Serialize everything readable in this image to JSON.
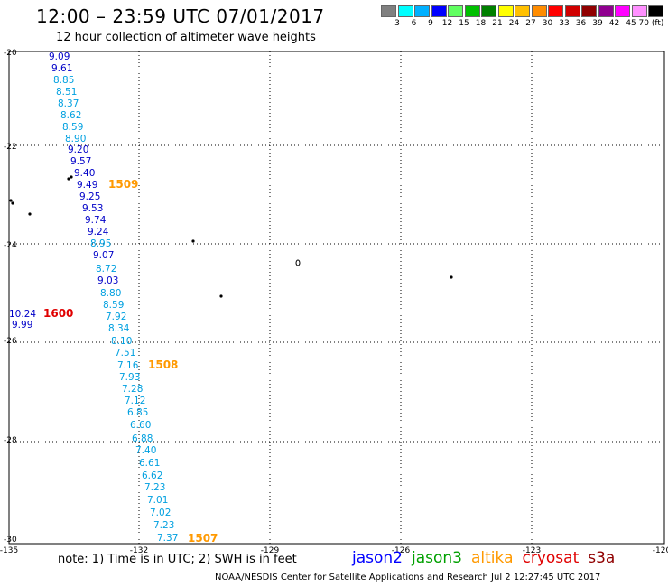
{
  "header": {
    "title": "12:00 – 23:59 UTC 07/01/2017",
    "subtitle": "12 hour collection of altimeter wave heights"
  },
  "legend": {
    "colors": [
      "#808080",
      "#00ffff",
      "#00b0ff",
      "#0000ff",
      "#60ff60",
      "#00c000",
      "#008000",
      "#ffff00",
      "#ffc000",
      "#ff8c00",
      "#ff0000",
      "#d00000",
      "#900000",
      "#900090",
      "#ff00ff",
      "#ff90ff",
      "#000000"
    ],
    "labels": [
      "3",
      "6",
      "9",
      "12",
      "15",
      "18",
      "21",
      "24",
      "27",
      "30",
      "33",
      "36",
      "39",
      "42",
      "45",
      "70 (ft)"
    ]
  },
  "axes": {
    "lon_labels": [
      "-135",
      "-132",
      "-129",
      "-126",
      "-123",
      "-120"
    ],
    "lat_labels": [
      "-20",
      "-22",
      "-24",
      "-26",
      "-28",
      "-30"
    ]
  },
  "satellites": {
    "jason2": {
      "label": "jason2",
      "color": "#0000ff"
    },
    "jason3": {
      "label": "jason3",
      "color": "#00a000"
    },
    "altika": {
      "label": "altika",
      "color": "#ff9900"
    },
    "cryosat": {
      "label": "cryosat",
      "color": "#e00000"
    },
    "s3a": {
      "label": "s3a",
      "color": "#900000"
    }
  },
  "time_labels": [
    {
      "text": "1509",
      "color": "#ff9900"
    },
    {
      "text": "1600",
      "color": "#e00000"
    },
    {
      "text": "1508",
      "color": "#ff9900"
    },
    {
      "text": "1507",
      "color": "#ff9900"
    }
  ],
  "wave_heights": [
    {
      "v": "9.09",
      "c": "#0000c8"
    },
    {
      "v": "9.61",
      "c": "#0000c8"
    },
    {
      "v": "8.85",
      "c": "#00a0e0"
    },
    {
      "v": "8.51",
      "c": "#00a0e0"
    },
    {
      "v": "8.37",
      "c": "#00a0e0"
    },
    {
      "v": "8.62",
      "c": "#00a0e0"
    },
    {
      "v": "8.59",
      "c": "#00a0e0"
    },
    {
      "v": "8.90",
      "c": "#00a0e0"
    },
    {
      "v": "9.20",
      "c": "#0000c8"
    },
    {
      "v": "9.57",
      "c": "#0000c8"
    },
    {
      "v": "9.40",
      "c": "#0000c8"
    },
    {
      "v": "9.49",
      "c": "#0000c8"
    },
    {
      "v": "9.25",
      "c": "#0000c8"
    },
    {
      "v": "9.53",
      "c": "#0000c8"
    },
    {
      "v": "9.74",
      "c": "#0000c8"
    },
    {
      "v": "9.24",
      "c": "#0000c8"
    },
    {
      "v": "8.95",
      "c": "#00a0e0"
    },
    {
      "v": "9.07",
      "c": "#0000c8"
    },
    {
      "v": "8.72",
      "c": "#00a0e0"
    },
    {
      "v": "9.03",
      "c": "#0000c8"
    },
    {
      "v": "8.80",
      "c": "#00a0e0"
    },
    {
      "v": "8.59",
      "c": "#00a0e0"
    },
    {
      "v": "7.92",
      "c": "#00a0e0"
    },
    {
      "v": "8.34",
      "c": "#00a0e0"
    },
    {
      "v": "8.10",
      "c": "#00a0e0"
    },
    {
      "v": "7.51",
      "c": "#00a0e0"
    },
    {
      "v": "7.16",
      "c": "#00a0e0"
    },
    {
      "v": "7.93",
      "c": "#00a0e0"
    },
    {
      "v": "7.28",
      "c": "#00a0e0"
    },
    {
      "v": "7.12",
      "c": "#00a0e0"
    },
    {
      "v": "6.85",
      "c": "#00a0e0"
    },
    {
      "v": "6.60",
      "c": "#00a0e0"
    },
    {
      "v": "6.88",
      "c": "#00a0e0"
    },
    {
      "v": "7.40",
      "c": "#00a0e0"
    },
    {
      "v": "6.61",
      "c": "#00a0e0"
    },
    {
      "v": "6.62",
      "c": "#00a0e0"
    },
    {
      "v": "7.23",
      "c": "#00a0e0"
    },
    {
      "v": "7.01",
      "c": "#00a0e0"
    },
    {
      "v": "7.02",
      "c": "#00a0e0"
    },
    {
      "v": "7.23",
      "c": "#00a0e0"
    },
    {
      "v": "7.37",
      "c": "#00a0e0"
    },
    {
      "v": "10.24",
      "c": "#0000c8"
    },
    {
      "v": "9.99",
      "c": "#0000c8"
    }
  ],
  "footer": {
    "note": "note:  1) Time is in UTC;  2) SWH is in feet",
    "credit": "NOAA/NESDIS Center for Satellite Applications and Research    Jul  2 12:27:45 UTC 2017"
  }
}
